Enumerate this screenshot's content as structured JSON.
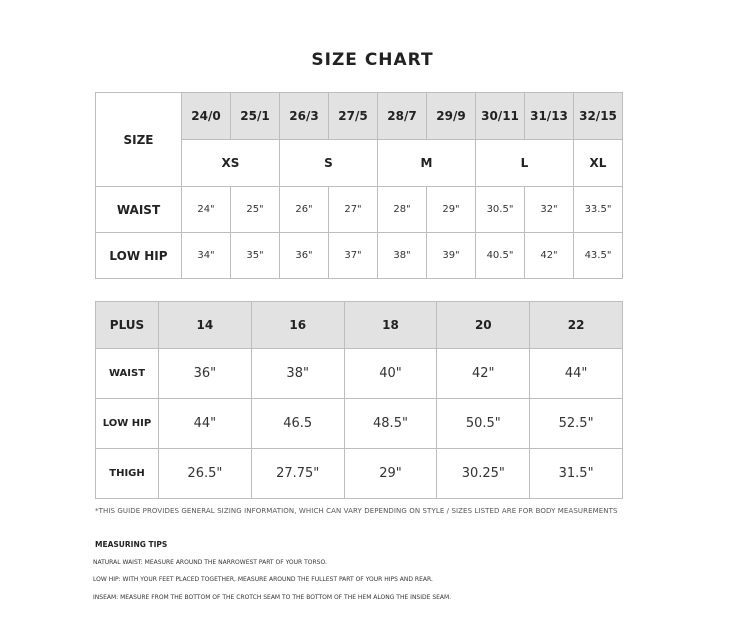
{
  "title": "SIZE CHART",
  "size_table": {
    "size_label": "SIZE",
    "numeric_sizes": [
      "24/0",
      "25/1",
      "26/3",
      "27/5",
      "28/7",
      "29/9",
      "30/11",
      "31/13",
      "32/15"
    ],
    "letter_sizes": [
      {
        "label": "XS",
        "span": 2
      },
      {
        "label": "S",
        "span": 2
      },
      {
        "label": "M",
        "span": 2
      },
      {
        "label": "L",
        "span": 2
      },
      {
        "label": "XL",
        "span": 1
      }
    ],
    "rows": [
      {
        "label": "WAIST",
        "values": [
          "24\"",
          "25\"",
          "26\"",
          "27\"",
          "28\"",
          "29\"",
          "30.5\"",
          "32\"",
          "33.5\""
        ]
      },
      {
        "label": "LOW HIP",
        "values": [
          "34\"",
          "35\"",
          "36\"",
          "37\"",
          "38\"",
          "39\"",
          "40.5\"",
          "42\"",
          "43.5\""
        ]
      }
    ]
  },
  "plus_table": {
    "header_label": "PLUS",
    "sizes": [
      "14",
      "16",
      "18",
      "20",
      "22"
    ],
    "rows": [
      {
        "label": "WAIST",
        "values": [
          "36\"",
          "38\"",
          "40\"",
          "42\"",
          "44\""
        ]
      },
      {
        "label": "LOW HIP",
        "values": [
          "44\"",
          "46.5",
          "48.5\"",
          "50.5\"",
          "52.5\""
        ]
      },
      {
        "label": "THIGH",
        "values": [
          "26.5\"",
          "27.75\"",
          "29\"",
          "30.25\"",
          "31.5\""
        ]
      }
    ]
  },
  "note": "*THIS GUIDE PROVIDES GENERAL SIZING INFORMATION, WHICH CAN VARY DEPENDING ON STYLE / SIZES LISTED ARE FOR BODY MEASUREMENTS",
  "tips": {
    "heading": "MEASURING TIPS",
    "items": [
      "NATURAL WAIST: MEASURE AROUND THE NARROWEST PART OF YOUR TORSO.",
      "LOW HIP: WITH YOUR FEET PLACED TOGETHER, MEASURE AROUND THE FULLEST PART OF YOUR HIPS AND REAR.",
      "INSEAM: MEASURE FROM THE BOTTOM OF THE CROTCH SEAM TO THE BOTTOM OF THE HEM ALONG THE INSIDE SEAM."
    ]
  }
}
